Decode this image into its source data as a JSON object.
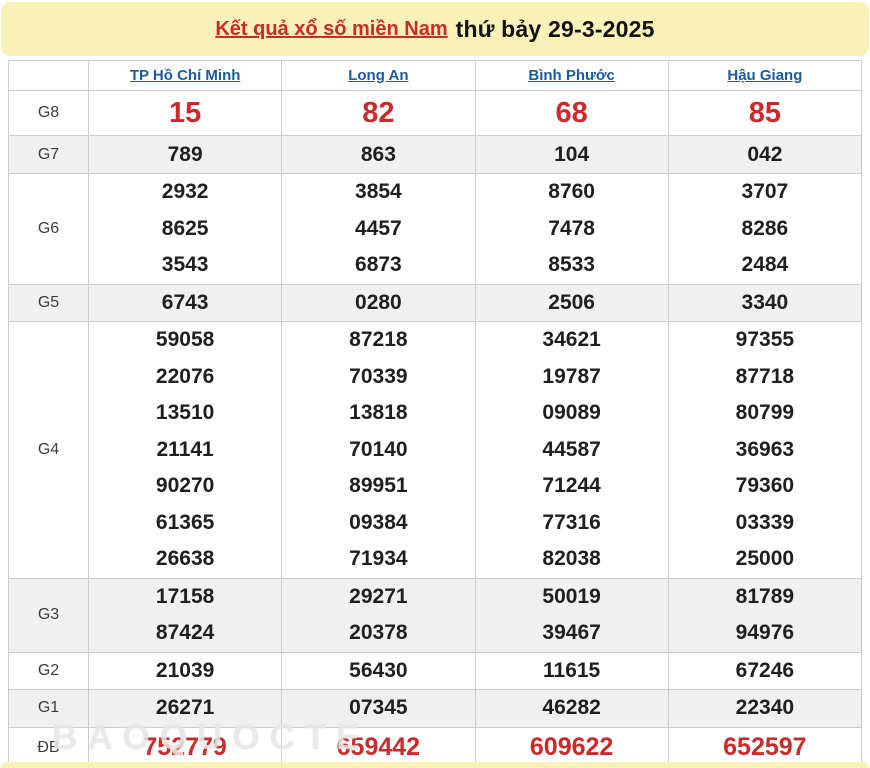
{
  "banner": {
    "title_link": "Kết quả xổ số miền Nam",
    "draw_date": "thứ bảy 29-3-2025"
  },
  "table": {
    "columns": [
      "TP Hồ Chí Minh",
      "Long An",
      "Bình Phước",
      "Hậu Giang"
    ],
    "rows": [
      {
        "label": "G8",
        "key": "G8",
        "values": [
          [
            "15"
          ],
          [
            "82"
          ],
          [
            "68"
          ],
          [
            "85"
          ]
        ]
      },
      {
        "label": "G7",
        "key": "G7",
        "values": [
          [
            "789"
          ],
          [
            "863"
          ],
          [
            "104"
          ],
          [
            "042"
          ]
        ]
      },
      {
        "label": "G6",
        "key": "G6",
        "values": [
          [
            "2932",
            "8625",
            "3543"
          ],
          [
            "3854",
            "4457",
            "6873"
          ],
          [
            "8760",
            "7478",
            "8533"
          ],
          [
            "3707",
            "8286",
            "2484"
          ]
        ]
      },
      {
        "label": "G5",
        "key": "G5",
        "values": [
          [
            "6743"
          ],
          [
            "0280"
          ],
          [
            "2506"
          ],
          [
            "3340"
          ]
        ]
      },
      {
        "label": "G4",
        "key": "G4",
        "values": [
          [
            "59058",
            "22076",
            "13510",
            "21141",
            "90270",
            "61365",
            "26638"
          ],
          [
            "87218",
            "70339",
            "13818",
            "70140",
            "89951",
            "09384",
            "71934"
          ],
          [
            "34621",
            "19787",
            "09089",
            "44587",
            "71244",
            "77316",
            "82038"
          ],
          [
            "97355",
            "87718",
            "80799",
            "36963",
            "79360",
            "03339",
            "25000"
          ]
        ]
      },
      {
        "label": "G3",
        "key": "G3",
        "values": [
          [
            "17158",
            "87424"
          ],
          [
            "29271",
            "20378"
          ],
          [
            "50019",
            "39467"
          ],
          [
            "81789",
            "94976"
          ]
        ]
      },
      {
        "label": "G2",
        "key": "G2",
        "values": [
          [
            "21039"
          ],
          [
            "56430"
          ],
          [
            "11615"
          ],
          [
            "67246"
          ]
        ]
      },
      {
        "label": "G1",
        "key": "G1",
        "values": [
          [
            "26271"
          ],
          [
            "07345"
          ],
          [
            "46282"
          ],
          [
            "22340"
          ]
        ]
      },
      {
        "label": "ĐB",
        "key": "DB",
        "values": [
          [
            "752779"
          ],
          [
            "659442"
          ],
          [
            "609622"
          ],
          [
            "652597"
          ]
        ]
      }
    ]
  },
  "watermark": "BAOQUOCTE",
  "colors": {
    "banner_yellow": "#faf1b8",
    "accent_red": "#cc2a2a",
    "link_blue": "#1a5b9e",
    "stripe_gray": "#f0f0f0",
    "border_gray": "#cccccc"
  }
}
